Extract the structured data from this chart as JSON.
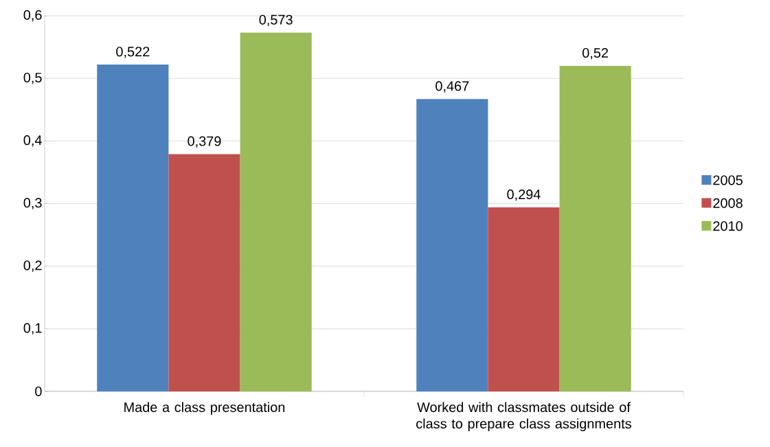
{
  "chart_data": {
    "type": "bar",
    "categories": [
      "Made a class presentation",
      "Worked with classmates outside of class to prepare class assignments"
    ],
    "series": [
      {
        "name": "2005",
        "color": "#4f81bd",
        "values": [
          0.522,
          0.467
        ],
        "value_labels": [
          "0,522",
          "0,467"
        ]
      },
      {
        "name": "2008",
        "color": "#c0504d",
        "values": [
          0.379,
          0.294
        ],
        "value_labels": [
          "0,379",
          "0,294"
        ]
      },
      {
        "name": "2010",
        "color": "#9bbb59",
        "values": [
          0.573,
          0.52
        ],
        "value_labels": [
          "0,573",
          "0,52"
        ]
      }
    ],
    "ylim": [
      0,
      0.6
    ],
    "yticks": [
      {
        "value": 0,
        "label": "0"
      },
      {
        "value": 0.1,
        "label": "0,1"
      },
      {
        "value": 0.2,
        "label": "0,2"
      },
      {
        "value": 0.3,
        "label": "0,3"
      },
      {
        "value": 0.4,
        "label": "0,4"
      },
      {
        "value": 0.5,
        "label": "0,5"
      },
      {
        "value": 0.6,
        "label": "0,6"
      }
    ],
    "grid": "y",
    "legend": "right"
  }
}
